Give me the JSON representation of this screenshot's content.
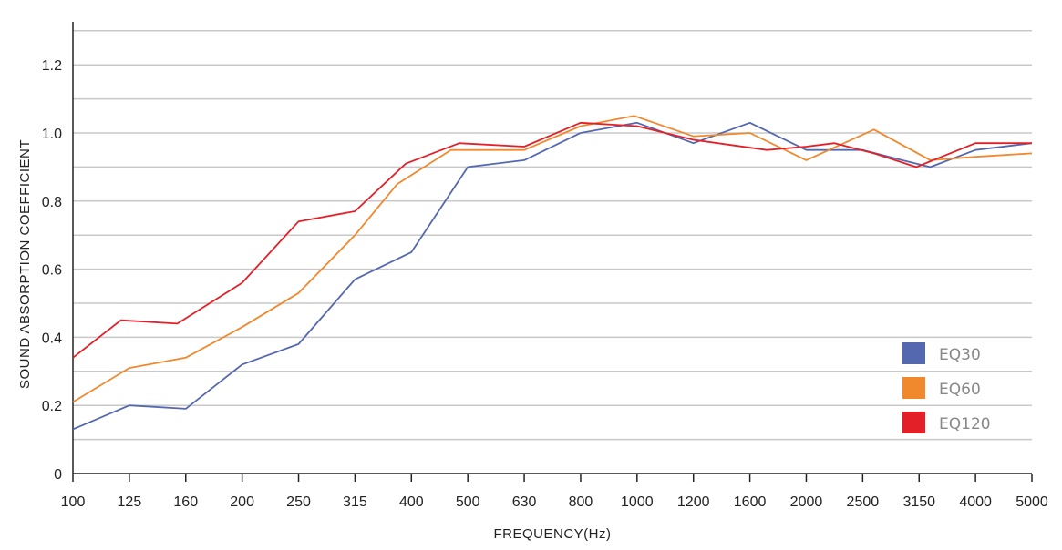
{
  "chart_data": {
    "type": "line",
    "title": "",
    "xlabel": "FREQUENCY(Hz)",
    "ylabel": "SOUND ABSORPTION COEFFICIENT",
    "categories": [
      "100",
      "125",
      "160",
      "200",
      "250",
      "315",
      "400",
      "500",
      "630",
      "800",
      "1000",
      "1200",
      "1600",
      "2000",
      "2500",
      "3150",
      "4000",
      "5000"
    ],
    "y_tick_labels": [
      "0",
      "0.2",
      "0.4",
      "0.6",
      "0.8",
      "1.0",
      "1.2"
    ],
    "y_ticks": [
      0,
      0.2,
      0.4,
      0.6,
      0.8,
      1.0,
      1.2
    ],
    "ylim": [
      0,
      1.32
    ],
    "grid": true,
    "legend_position": "bottom-right",
    "series": [
      {
        "name": "EQ30",
        "color": "#5468b0",
        "points": [
          [
            0,
            0.13
          ],
          [
            1,
            0.2
          ],
          [
            2,
            0.19
          ],
          [
            3,
            0.32
          ],
          [
            4,
            0.38
          ],
          [
            5,
            0.57
          ],
          [
            6,
            0.65
          ],
          [
            7,
            0.9
          ],
          [
            8,
            0.92
          ],
          [
            9,
            1.0
          ],
          [
            10,
            1.03
          ],
          [
            11,
            0.97
          ],
          [
            12,
            1.03
          ],
          [
            13,
            0.95
          ],
          [
            14,
            0.95
          ],
          [
            14.7,
            0.92
          ],
          [
            15.2,
            0.9
          ],
          [
            16,
            0.95
          ],
          [
            17,
            0.97
          ]
        ]
      },
      {
        "name": "EQ60",
        "color": "#f0882d",
        "points": [
          [
            0,
            0.21
          ],
          [
            1,
            0.31
          ],
          [
            2,
            0.34
          ],
          [
            3,
            0.43
          ],
          [
            4,
            0.53
          ],
          [
            5,
            0.7
          ],
          [
            5.75,
            0.85
          ],
          [
            6.7,
            0.95
          ],
          [
            8,
            0.95
          ],
          [
            9,
            1.02
          ],
          [
            9.95,
            1.05
          ],
          [
            11,
            0.99
          ],
          [
            12,
            1.0
          ],
          [
            13,
            0.92
          ],
          [
            14.2,
            1.01
          ],
          [
            15.2,
            0.92
          ],
          [
            16,
            0.93
          ],
          [
            17,
            0.94
          ]
        ]
      },
      {
        "name": "EQ120",
        "color": "#e32027",
        "points": [
          [
            0,
            0.34
          ],
          [
            0.85,
            0.45
          ],
          [
            1.85,
            0.44
          ],
          [
            3,
            0.56
          ],
          [
            4,
            0.74
          ],
          [
            5,
            0.77
          ],
          [
            5.9,
            0.91
          ],
          [
            6.85,
            0.97
          ],
          [
            8,
            0.96
          ],
          [
            9,
            1.03
          ],
          [
            10,
            1.02
          ],
          [
            11,
            0.98
          ],
          [
            12.3,
            0.95
          ],
          [
            13,
            0.96
          ],
          [
            13.5,
            0.97
          ],
          [
            14.2,
            0.94
          ],
          [
            14.95,
            0.9
          ],
          [
            16,
            0.97
          ],
          [
            17,
            0.97
          ]
        ]
      }
    ]
  }
}
